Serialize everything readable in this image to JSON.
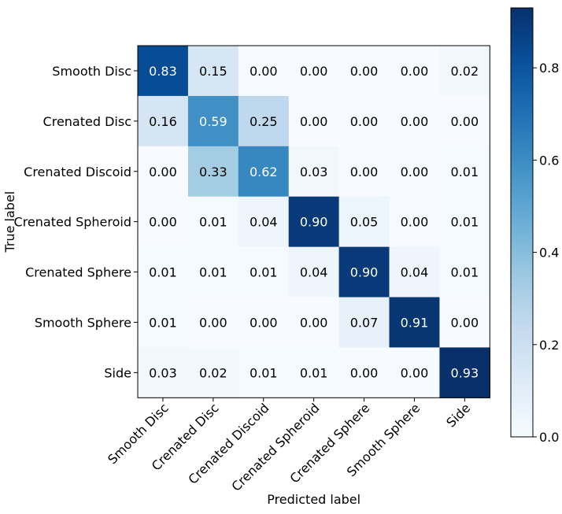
{
  "chart_data": {
    "type": "heatmap",
    "title": "",
    "xlabel": "Predicted label",
    "ylabel": "True label",
    "x_categories": [
      "Smooth Disc",
      "Crenated Disc",
      "Crenated Discoid",
      "Crenated Spheroid",
      "Crenated Sphere",
      "Smooth Sphere",
      "Side"
    ],
    "y_categories": [
      "Smooth Disc",
      "Crenated Disc",
      "Crenated Discoid",
      "Crenated Spheroid",
      "Crenated Sphere",
      "Smooth Sphere",
      "Side"
    ],
    "values": [
      [
        0.83,
        0.15,
        0.0,
        0.0,
        0.0,
        0.0,
        0.02
      ],
      [
        0.16,
        0.59,
        0.25,
        0.0,
        0.0,
        0.0,
        0.0
      ],
      [
        0.0,
        0.33,
        0.62,
        0.03,
        0.0,
        0.0,
        0.01
      ],
      [
        0.0,
        0.01,
        0.04,
        0.9,
        0.05,
        0.0,
        0.01
      ],
      [
        0.01,
        0.01,
        0.01,
        0.04,
        0.9,
        0.04,
        0.01
      ],
      [
        0.01,
        0.0,
        0.0,
        0.0,
        0.07,
        0.91,
        0.0
      ],
      [
        0.03,
        0.02,
        0.01,
        0.01,
        0.0,
        0.0,
        0.93
      ]
    ],
    "value_format": "2-decimal",
    "colormap": "Blues",
    "color_range": [
      0.0,
      0.93
    ],
    "colorbar_ticks": [
      "0.0",
      "0.2",
      "0.4",
      "0.6",
      "0.8"
    ],
    "colorbar_tick_values": [
      0.0,
      0.2,
      0.4,
      0.6,
      0.8
    ],
    "text_color_light": "#ffffff",
    "text_color_dark": "#000000",
    "grid": false,
    "colorbar_position": "right"
  }
}
